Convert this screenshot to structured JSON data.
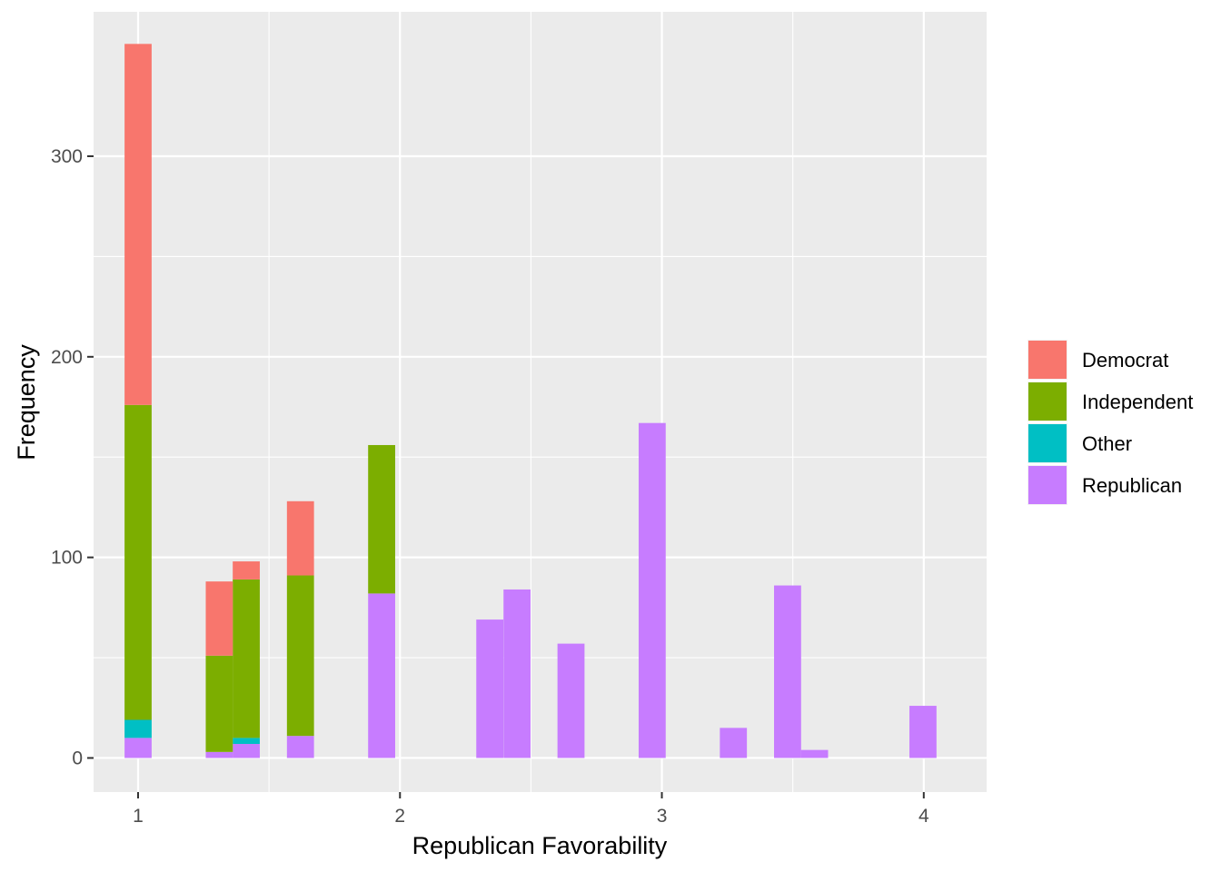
{
  "chart_data": {
    "type": "bar",
    "stacked": true,
    "xlabel": "Republican Favorability",
    "ylabel": "Frequency",
    "xlim": [
      0.83,
      4.24
    ],
    "ylim": [
      -17,
      372
    ],
    "x_ticks": [
      1,
      2,
      3,
      4
    ],
    "x_tick_labels": [
      "1",
      "2",
      "3",
      "4"
    ],
    "y_ticks": [
      0,
      100,
      200,
      300
    ],
    "y_tick_labels": [
      "0",
      "100",
      "200",
      "300"
    ],
    "bin_width": 0.1033,
    "grid": true,
    "legend_position": "right",
    "legend_title": "",
    "stack_order": [
      "Republican",
      "Other",
      "Independent",
      "Democrat"
    ],
    "series": [
      {
        "name": "Democrat",
        "color": "#F8766D",
        "bins": [
          {
            "x": 1.0,
            "value": 180
          },
          {
            "x": 1.31,
            "value": 37
          },
          {
            "x": 1.413,
            "value": 9
          },
          {
            "x": 1.62,
            "value": 37
          }
        ]
      },
      {
        "name": "Independent",
        "color": "#7CAE00",
        "bins": [
          {
            "x": 1.0,
            "value": 157
          },
          {
            "x": 1.31,
            "value": 48
          },
          {
            "x": 1.413,
            "value": 79
          },
          {
            "x": 1.62,
            "value": 80
          },
          {
            "x": 1.93,
            "value": 74
          }
        ]
      },
      {
        "name": "Other",
        "color": "#00BFC4",
        "bins": [
          {
            "x": 1.0,
            "value": 9
          },
          {
            "x": 1.413,
            "value": 3
          }
        ]
      },
      {
        "name": "Republican",
        "color": "#C77CFF",
        "bins": [
          {
            "x": 1.0,
            "value": 10
          },
          {
            "x": 1.31,
            "value": 3
          },
          {
            "x": 1.413,
            "value": 7
          },
          {
            "x": 1.62,
            "value": 11
          },
          {
            "x": 1.93,
            "value": 82
          },
          {
            "x": 2.343,
            "value": 69
          },
          {
            "x": 2.447,
            "value": 84
          },
          {
            "x": 2.653,
            "value": 57
          },
          {
            "x": 2.963,
            "value": 167
          },
          {
            "x": 3.273,
            "value": 15
          },
          {
            "x": 3.48,
            "value": 86
          },
          {
            "x": 3.583,
            "value": 4
          },
          {
            "x": 3.997,
            "value": 26
          }
        ]
      }
    ]
  }
}
